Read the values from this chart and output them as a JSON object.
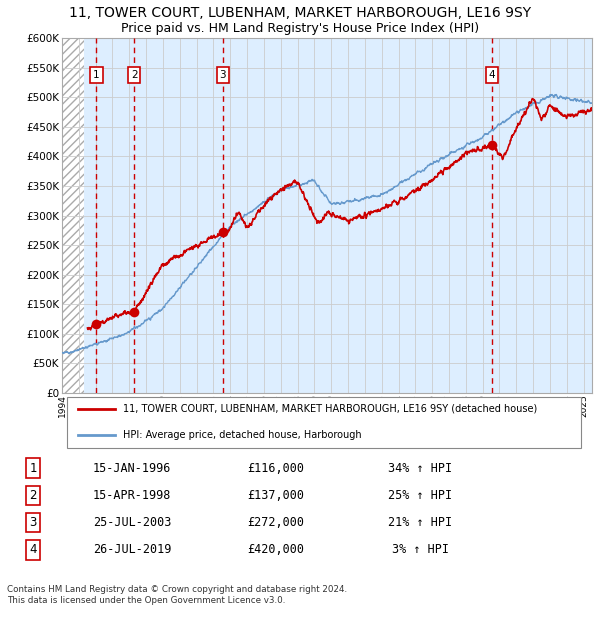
{
  "title": "11, TOWER COURT, LUBENHAM, MARKET HARBOROUGH, LE16 9SY",
  "subtitle": "Price paid vs. HM Land Registry's House Price Index (HPI)",
  "legend_line1": "11, TOWER COURT, LUBENHAM, MARKET HARBOROUGH, LE16 9SY (detached house)",
  "legend_line2": "HPI: Average price, detached house, Harborough",
  "copyright_text": "Contains HM Land Registry data © Crown copyright and database right 2024.\nThis data is licensed under the Open Government Licence v3.0.",
  "transactions": [
    {
      "num": 1,
      "date": "15-JAN-1996",
      "price": 116000,
      "pct": "34%",
      "x_year": 1996.04
    },
    {
      "num": 2,
      "date": "15-APR-1998",
      "price": 137000,
      "pct": "25%",
      "x_year": 1998.29
    },
    {
      "num": 3,
      "date": "25-JUL-2003",
      "price": 272000,
      "pct": "21%",
      "x_year": 2003.56
    },
    {
      "num": 4,
      "date": "26-JUL-2019",
      "price": 420000,
      "pct": "3%",
      "x_year": 2019.56
    }
  ],
  "xmin": 1994.0,
  "xmax": 2025.5,
  "ymin": 0,
  "ymax": 600000,
  "hatch_end": 1995.3,
  "red_line_color": "#cc0000",
  "blue_line_color": "#6699cc",
  "background_color": "#ddeeff",
  "grid_color": "#cccccc",
  "transaction_box_color": "#cc0000",
  "dashed_line_color": "#cc0000",
  "title_fontsize": 10,
  "subtitle_fontsize": 9
}
